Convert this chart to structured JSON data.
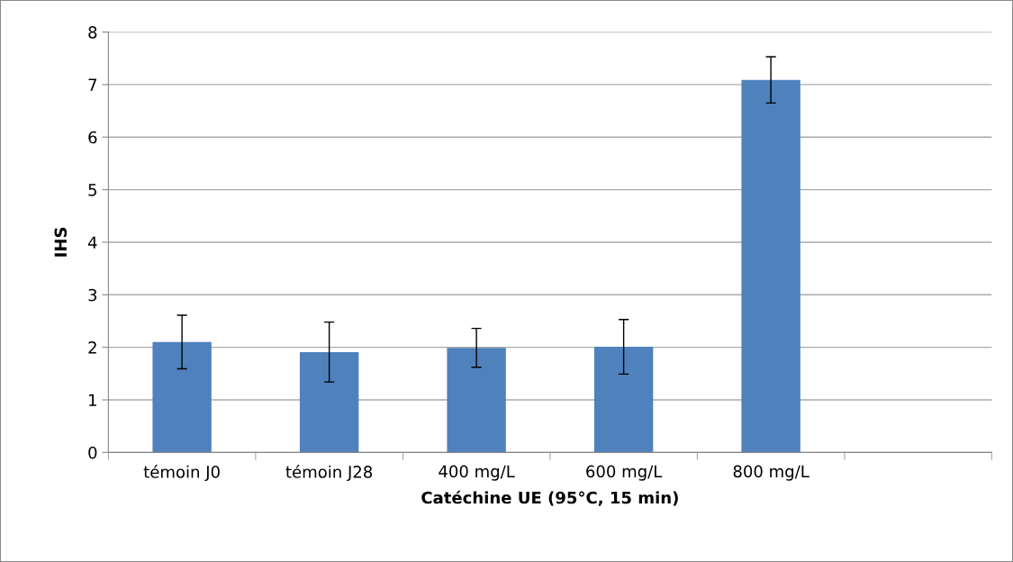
{
  "chart_data": {
    "type": "bar",
    "xlabel": "Catéchine UE (95°C, 15 min)",
    "ylabel": "IHS",
    "categories": [
      "témoin J0",
      "témoin J28",
      "400 mg/L",
      "600 mg/L",
      "800 mg/L",
      null
    ],
    "values": [
      2.1,
      1.91,
      1.99,
      2.01,
      7.09,
      null
    ],
    "errors": [
      0.51,
      0.57,
      0.37,
      0.52,
      0.44,
      null
    ],
    "color": "#4f81bd",
    "ylim": [
      0,
      8
    ],
    "yticks": [
      0,
      1,
      2,
      3,
      4,
      5,
      6,
      7,
      8
    ],
    "grid": "y",
    "legend": false
  }
}
